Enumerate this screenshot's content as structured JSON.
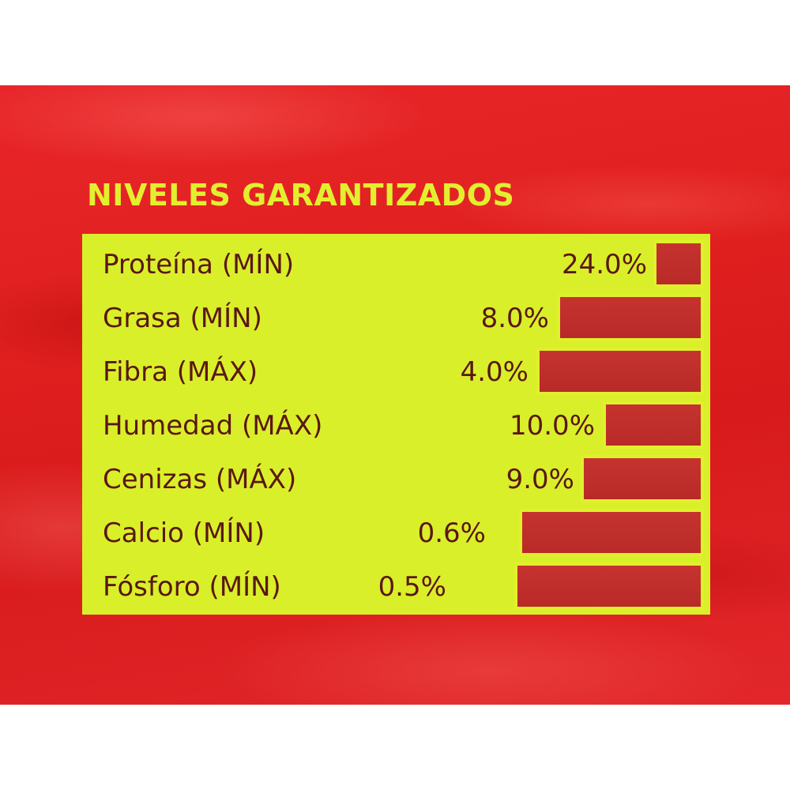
{
  "heading": "NIVELES GARANTIZADOS",
  "colors": {
    "package_red": "#e0201f",
    "label_yellow": "#d9ef2a",
    "heading_text": "#e3ef2e",
    "row_text": "#5a1712",
    "bar_fill": "#bf302c"
  },
  "rows": [
    {
      "label": "Proteína (MÍN)",
      "value": "24.0%"
    },
    {
      "label": "Grasa (MÍN)",
      "value": "8.0%"
    },
    {
      "label": "Fibra (MÁX)",
      "value": "4.0%"
    },
    {
      "label": "Humedad (MÁX)",
      "value": "10.0%"
    },
    {
      "label": "Cenizas (MÁX)",
      "value": "9.0%"
    },
    {
      "label": "Calcio (MÍN)",
      "value": "0.6%"
    },
    {
      "label": "Fósforo (MÍN)",
      "value": "0.5%"
    }
  ]
}
